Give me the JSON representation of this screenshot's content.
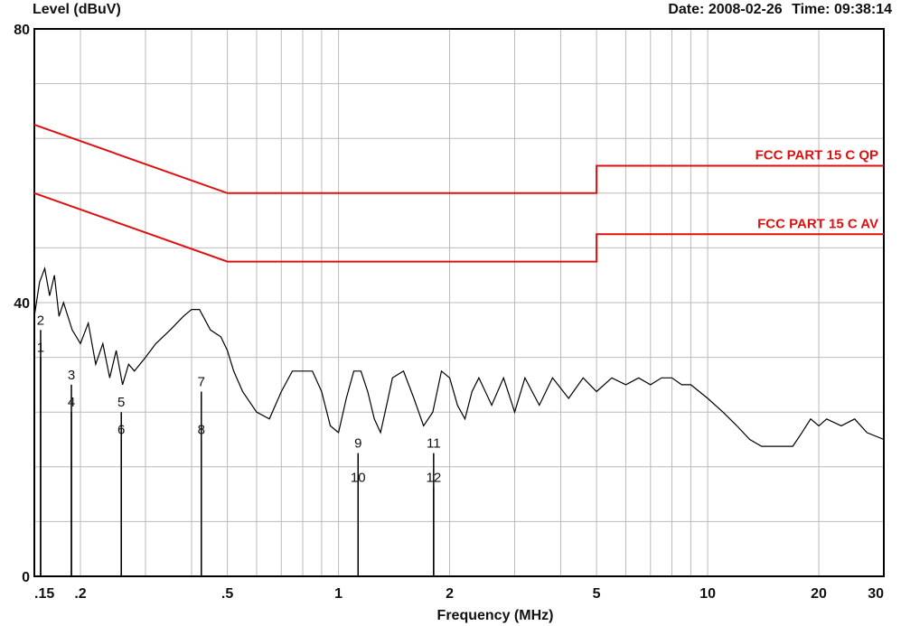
{
  "header": {
    "ylabel": "Level (dBuV)",
    "date_label": "Date:",
    "date": "2008-02-26",
    "time_label": "Time:",
    "time": "09:38:14"
  },
  "chart_data": {
    "type": "line",
    "xlabel": "Frequency (MHz)",
    "ylabel": "Level (dBuV)",
    "x_scale": "log",
    "xlim": [
      0.15,
      30
    ],
    "ylim": [
      0,
      80
    ],
    "grid": true,
    "x_ticks": [
      {
        "value": 0.15,
        "label": ".15"
      },
      {
        "value": 0.2,
        "label": ".2"
      },
      {
        "value": 0.5,
        "label": ".5"
      },
      {
        "value": 1,
        "label": "1"
      },
      {
        "value": 2,
        "label": "2"
      },
      {
        "value": 5,
        "label": "5"
      },
      {
        "value": 10,
        "label": "10"
      },
      {
        "value": 20,
        "label": "20"
      },
      {
        "value": 30,
        "label": "30"
      }
    ],
    "y_ticks": [
      {
        "value": 0,
        "label": "0"
      },
      {
        "value": 40,
        "label": "40"
      },
      {
        "value": 80,
        "label": "80"
      }
    ],
    "colors": {
      "limit": "#dd1111",
      "trace": "#000000",
      "grid": "#bbbbbb"
    },
    "limit_lines": [
      {
        "name": "FCC PART 15 C QP",
        "points": [
          [
            0.15,
            66
          ],
          [
            0.5,
            56
          ],
          [
            5,
            56
          ],
          [
            5,
            60
          ],
          [
            30,
            60
          ]
        ]
      },
      {
        "name": "FCC PART 15 C AV",
        "points": [
          [
            0.15,
            56
          ],
          [
            0.5,
            46
          ],
          [
            5,
            46
          ],
          [
            5,
            50
          ],
          [
            30,
            50
          ]
        ]
      }
    ],
    "trace": {
      "name": "",
      "points": [
        [
          0.15,
          38
        ],
        [
          0.155,
          43
        ],
        [
          0.16,
          45
        ],
        [
          0.165,
          41
        ],
        [
          0.17,
          44
        ],
        [
          0.175,
          38
        ],
        [
          0.18,
          40
        ],
        [
          0.19,
          36
        ],
        [
          0.2,
          34
        ],
        [
          0.21,
          37
        ],
        [
          0.22,
          31
        ],
        [
          0.23,
          34
        ],
        [
          0.24,
          29
        ],
        [
          0.25,
          33
        ],
        [
          0.26,
          28
        ],
        [
          0.27,
          31
        ],
        [
          0.28,
          30
        ],
        [
          0.3,
          32
        ],
        [
          0.32,
          34
        ],
        [
          0.35,
          36
        ],
        [
          0.38,
          38
        ],
        [
          0.4,
          39
        ],
        [
          0.42,
          39
        ],
        [
          0.45,
          36
        ],
        [
          0.48,
          35
        ],
        [
          0.5,
          33
        ],
        [
          0.52,
          30
        ],
        [
          0.55,
          27
        ],
        [
          0.6,
          24
        ],
        [
          0.65,
          23
        ],
        [
          0.7,
          27
        ],
        [
          0.75,
          30
        ],
        [
          0.8,
          30
        ],
        [
          0.85,
          30
        ],
        [
          0.9,
          27
        ],
        [
          0.95,
          22
        ],
        [
          1.0,
          21
        ],
        [
          1.05,
          26
        ],
        [
          1.1,
          30
        ],
        [
          1.15,
          30
        ],
        [
          1.2,
          27
        ],
        [
          1.25,
          23
        ],
        [
          1.3,
          21
        ],
        [
          1.35,
          25
        ],
        [
          1.4,
          29
        ],
        [
          1.5,
          30
        ],
        [
          1.6,
          26
        ],
        [
          1.7,
          22
        ],
        [
          1.8,
          24
        ],
        [
          1.9,
          30
        ],
        [
          2.0,
          29
        ],
        [
          2.1,
          25
        ],
        [
          2.2,
          23
        ],
        [
          2.3,
          27
        ],
        [
          2.4,
          29
        ],
        [
          2.6,
          25
        ],
        [
          2.8,
          29
        ],
        [
          3.0,
          24
        ],
        [
          3.2,
          29
        ],
        [
          3.5,
          25
        ],
        [
          3.8,
          29
        ],
        [
          4.2,
          26
        ],
        [
          4.6,
          29
        ],
        [
          5.0,
          27
        ],
        [
          5.5,
          29
        ],
        [
          6.0,
          28
        ],
        [
          6.5,
          29
        ],
        [
          7.0,
          28
        ],
        [
          7.5,
          29
        ],
        [
          8.0,
          29
        ],
        [
          8.5,
          28
        ],
        [
          9.0,
          28
        ],
        [
          10.0,
          26
        ],
        [
          11.0,
          24
        ],
        [
          12.0,
          22
        ],
        [
          13.0,
          20
        ],
        [
          14.0,
          19
        ],
        [
          15.0,
          19
        ],
        [
          16.0,
          19
        ],
        [
          17.0,
          19
        ],
        [
          18.0,
          21
        ],
        [
          19.0,
          23
        ],
        [
          20.0,
          22
        ],
        [
          21.0,
          23
        ],
        [
          23.0,
          22
        ],
        [
          25.0,
          23
        ],
        [
          27.0,
          21
        ],
        [
          30.0,
          20
        ]
      ]
    },
    "markers": [
      {
        "label": "1",
        "x": 0.156,
        "y": 32
      },
      {
        "label": "2",
        "x": 0.156,
        "y": 36
      },
      {
        "label": "3",
        "x": 0.189,
        "y": 28
      },
      {
        "label": "4",
        "x": 0.189,
        "y": 24
      },
      {
        "label": "5",
        "x": 0.258,
        "y": 24
      },
      {
        "label": "6",
        "x": 0.258,
        "y": 20
      },
      {
        "label": "7",
        "x": 0.425,
        "y": 27
      },
      {
        "label": "8",
        "x": 0.425,
        "y": 20
      },
      {
        "label": "9",
        "x": 1.13,
        "y": 18
      },
      {
        "label": "10",
        "x": 1.13,
        "y": 13
      },
      {
        "label": "11",
        "x": 1.81,
        "y": 18
      },
      {
        "label": "12",
        "x": 1.81,
        "y": 13
      }
    ]
  }
}
